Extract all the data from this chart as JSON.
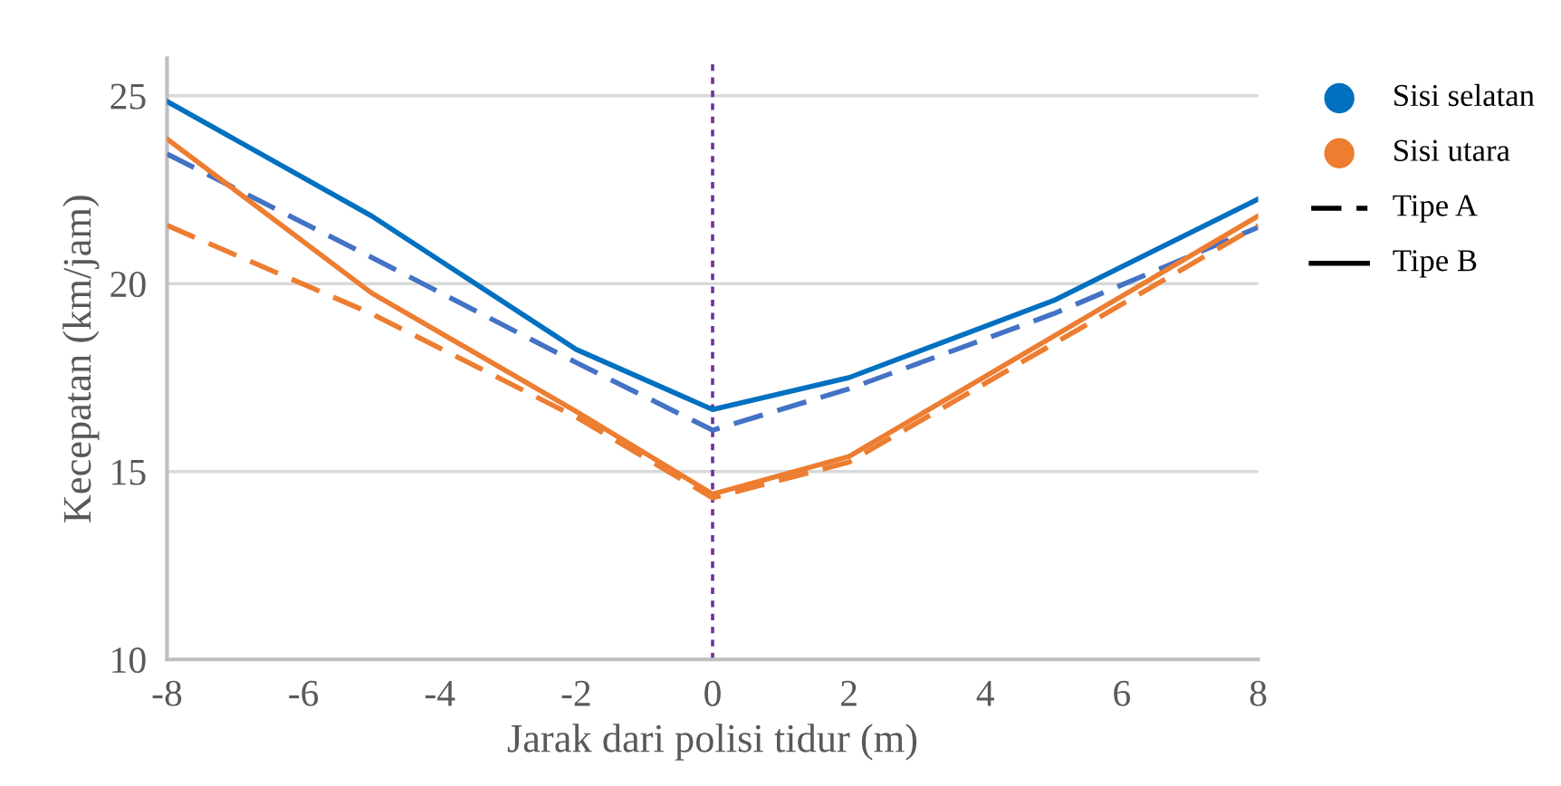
{
  "chart_data": {
    "type": "line",
    "xlabel": "Jarak dari polisi tidur (m)",
    "ylabel": "Kecepatan (km/jam)",
    "x": [
      -8,
      -5,
      -2,
      0,
      2,
      5,
      8
    ],
    "series": [
      {
        "color": "#0070c0",
        "line_style": "solid",
        "values": [
          24.85,
          21.8,
          18.25,
          16.65,
          17.5,
          19.55,
          22.25
        ]
      },
      {
        "color": "#4472c4",
        "line_style": "dashed",
        "values": [
          23.45,
          20.7,
          17.9,
          16.1,
          17.2,
          19.2,
          21.5
        ]
      },
      {
        "color": "#ed7d31",
        "line_style": "solid",
        "values": [
          23.85,
          19.75,
          16.6,
          14.4,
          15.4,
          18.6,
          21.8
        ]
      },
      {
        "color": "#ed7d31",
        "line_style": "dashed",
        "values": [
          21.55,
          19.2,
          16.45,
          14.3,
          15.25,
          18.4,
          21.55
        ]
      }
    ],
    "annotations": [
      "Sisi selatan",
      "Sisi utara",
      "Tipe A",
      "Tipe B"
    ],
    "ref_lines": [
      {
        "axis": "x",
        "value": 0,
        "color": "#7030a0",
        "line_style": "dotted"
      }
    ],
    "xlim": [
      -8,
      8
    ],
    "xticks": [
      -8,
      -6,
      -4,
      -2,
      0,
      2,
      4,
      6,
      8
    ],
    "ylim": [
      10,
      26
    ],
    "yticks": [
      10,
      15,
      20,
      25
    ],
    "grid": "y",
    "marker": "none"
  }
}
